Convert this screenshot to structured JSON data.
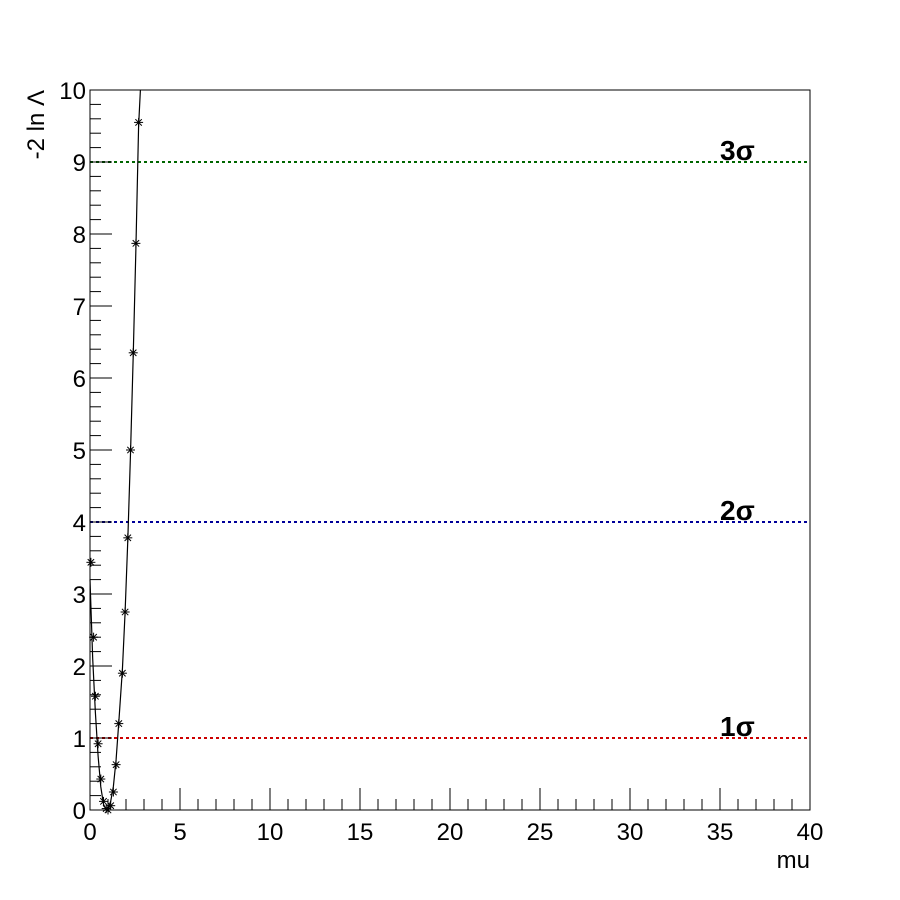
{
  "chart_data": {
    "type": "scatter",
    "xlabel": "mu",
    "ylabel": "-2 ln Λ",
    "xlim": [
      0,
      40
    ],
    "ylim": [
      0,
      10
    ],
    "x_ticks": [
      "0",
      "5",
      "10",
      "15",
      "20",
      "25",
      "30",
      "35",
      "40"
    ],
    "y_ticks": [
      "0",
      "1",
      "2",
      "3",
      "4",
      "5",
      "6",
      "7",
      "8",
      "9",
      "10"
    ],
    "grid": false,
    "series": [
      {
        "kind": "points",
        "marker": "asterisk",
        "color": "#000000",
        "x": [
          0.05,
          0.2,
          0.3,
          0.45,
          0.6,
          0.75,
          0.9,
          1.0,
          1.15,
          1.3,
          1.45,
          1.6,
          1.8,
          1.95,
          2.1,
          2.25,
          2.4,
          2.55,
          2.7
        ],
        "y": [
          3.44,
          2.4,
          1.58,
          0.92,
          0.43,
          0.12,
          0.02,
          0.0,
          0.06,
          0.25,
          0.63,
          1.2,
          1.9,
          2.75,
          3.78,
          5.0,
          6.35,
          7.87,
          9.55
        ]
      },
      {
        "kind": "curve",
        "color": "#000000",
        "x": [
          0.0,
          0.15,
          0.3,
          0.45,
          0.6,
          0.75,
          0.9,
          1.0,
          1.15,
          1.3,
          1.45,
          1.6,
          1.8,
          1.95,
          2.1,
          2.25,
          2.4,
          2.55,
          2.7,
          2.8
        ],
        "y": [
          3.2,
          2.1,
          1.35,
          0.75,
          0.32,
          0.08,
          0.0,
          0.02,
          0.12,
          0.33,
          0.7,
          1.22,
          1.95,
          2.75,
          3.75,
          4.95,
          6.3,
          7.8,
          9.5,
          10.0
        ]
      }
    ],
    "reference_lines": [
      {
        "y": 1,
        "label": "1σ",
        "color": "#cc0000"
      },
      {
        "y": 4,
        "label": "2σ",
        "color": "#000099"
      },
      {
        "y": 9,
        "label": "3σ",
        "color": "#006600"
      }
    ]
  }
}
